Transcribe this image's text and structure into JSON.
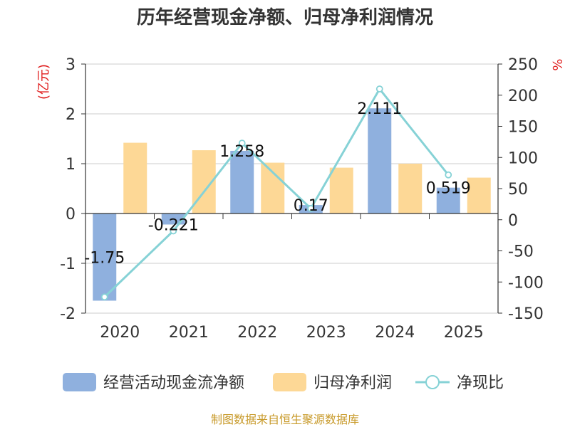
{
  "chart_data": {
    "type": "bar",
    "title": "历年经营现金净额、归母净利润情况",
    "categories": [
      "2020",
      "2021",
      "2022",
      "2023",
      "2024",
      "2025"
    ],
    "series": [
      {
        "name": "经营活动现金流净额",
        "kind": "bar",
        "axis": "left",
        "color": "#8fb0de",
        "values": [
          -1.75,
          -0.221,
          1.258,
          0.17,
          2.111,
          0.519
        ],
        "labels": [
          "-1.75",
          "-0.221",
          "1.258",
          "0.17",
          "2.111",
          "0.519"
        ]
      },
      {
        "name": "归母净利润",
        "kind": "bar",
        "axis": "left",
        "color": "#fdd896",
        "values": [
          1.42,
          1.27,
          1.02,
          0.92,
          1.0,
          0.72
        ]
      },
      {
        "name": "净现比",
        "kind": "line",
        "axis": "right",
        "color": "#86d2d6",
        "values": [
          -124,
          -18,
          123,
          18,
          210,
          72
        ]
      }
    ],
    "y_left": {
      "label": "(亿元)",
      "min": -2,
      "max": 3,
      "ticks": [
        "-2",
        "-1",
        "0",
        "1",
        "2",
        "3"
      ]
    },
    "y_right": {
      "label": "%",
      "min": -150,
      "max": 250,
      "ticks": [
        "-150",
        "-100",
        "-50",
        "0",
        "50",
        "100",
        "150",
        "200",
        "250"
      ]
    },
    "legend_position": "bottom",
    "grid": true
  },
  "source": "制图数据来自恒生聚源数据库"
}
